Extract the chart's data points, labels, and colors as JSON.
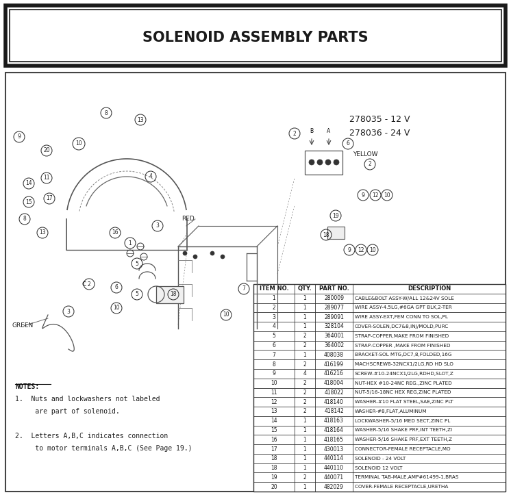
{
  "title": "SOLENOID ASSEMBLY PARTS",
  "title_fontsize": 15,
  "part_number_1": "278035 - 12 V",
  "part_number_2": "278036 - 24 V",
  "bg_color": "#ffffff",
  "border_color": "#333333",
  "table_headers": [
    "ITEM NO.",
    "QTY.",
    "PART NO.",
    "DESCRIPTION"
  ],
  "table_data": [
    [
      "1",
      "1",
      "280009",
      "CABLE&BOLT ASSY-W/ALL 12&24V SOLE"
    ],
    [
      "2",
      "1",
      "289077",
      "WIRE ASSY-4.5LG,#6GA GPT BLK,2-TER"
    ],
    [
      "3",
      "1",
      "289091",
      "WIRE ASSY-EXT,FEM CONN TO SOL,PL"
    ],
    [
      "4",
      "1",
      "328104",
      "COVER-SOLEN,DC7&8,INJ/MOLD,PURC"
    ],
    [
      "5",
      "2",
      "364001",
      "STRAP-COPPER,MAKE FROM FINISHED"
    ],
    [
      "6",
      "2",
      "364002",
      "STRAP-COPPER ,MAKE FROM FINISHED"
    ],
    [
      "7",
      "1",
      "408038",
      "BRACKET-SOL MTG,DC7,8,FOLDED,16G"
    ],
    [
      "8",
      "2",
      "416199",
      "MACHSCREW8-32NCX1/2LG,RD HD SLO"
    ],
    [
      "9",
      "4",
      "416216",
      "SCREW-#10-24NCX1/2LG,RDHD,SLOT,Z"
    ],
    [
      "10",
      "2",
      "418004",
      "NUT-HEX #10-24NC REG.,ZINC PLATED"
    ],
    [
      "11",
      "2",
      "418022",
      "NUT-5/16-18NC HEX REG,ZINC PLATED"
    ],
    [
      "12",
      "2",
      "418140",
      "WASHER-#10 FLAT STEEL,SAE,ZINC PLT"
    ],
    [
      "13",
      "2",
      "418142",
      "WASHER-#8,FLAT,ALUMINUM"
    ],
    [
      "14",
      "1",
      "418163",
      "LOCKWASHER-5/16 MED SECT,ZINC PL"
    ],
    [
      "15",
      "1",
      "418164",
      "WASHER-5/16 SHAKE PRF,INT TEETH,ZI"
    ],
    [
      "16",
      "1",
      "418165",
      "WASHER-5/16 SHAKE PRF,EXT TEETH,Z"
    ],
    [
      "17",
      "1",
      "430013",
      "CONNECTOR-FEMALE RECEPTACLE,MO"
    ],
    [
      "18",
      "1",
      "440114",
      "SOLENOID - 24 VOLT"
    ],
    [
      "18",
      "1",
      "440110",
      "SOLENOID 12 VOLT"
    ],
    [
      "19",
      "2",
      "440071",
      "TERMINAL TAB-MALE,AMP#61499-1,BRAS"
    ],
    [
      "20",
      "1",
      "482029",
      "COVER-FEMALE RECEPTACLE,URETHA"
    ]
  ],
  "notes_lines": [
    "NOTES:",
    "1.  Nuts and lockwashers not labeled",
    "     are part of solenoid.",
    " ",
    "2.  Letters A,B,C indicates connection",
    "     to motor terminals A,B,C (See Page 19.)"
  ]
}
